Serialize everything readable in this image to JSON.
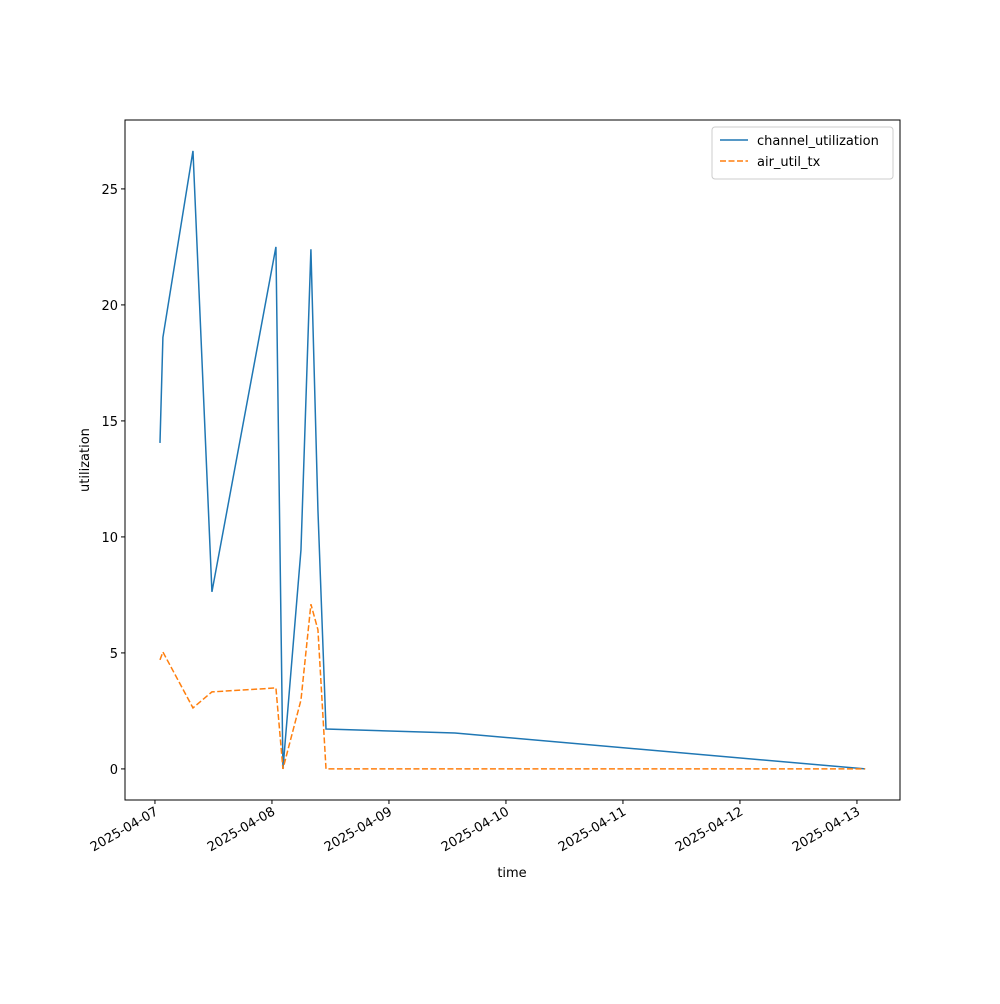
{
  "chart_data": {
    "type": "line",
    "xlabel": "time",
    "ylabel": "utilization",
    "x": [
      0.043,
      0.068,
      0.325,
      0.487,
      1.034,
      1.094,
      1.248,
      1.333,
      1.393,
      1.462,
      2.564,
      6.07
    ],
    "series": [
      {
        "name": "channel_utilization",
        "color": "#1f77b4",
        "dash": false,
        "values": [
          14.05,
          18.6,
          26.64,
          7.63,
          22.5,
          0,
          9.44,
          22.4,
          11.16,
          1.72,
          1.55,
          0
        ]
      },
      {
        "name": "air_util_tx",
        "color": "#ff7f0e",
        "dash": true,
        "values": [
          4.7,
          5.04,
          2.63,
          3.32,
          3.49,
          0,
          2.97,
          7.1,
          6.0,
          0,
          0,
          0
        ]
      }
    ],
    "xlim": [
      -0.256,
      6.368
    ],
    "xticks": [
      {
        "value": 0,
        "label": "2025-04-07"
      },
      {
        "value": 1,
        "label": "2025-04-08"
      },
      {
        "value": 2,
        "label": "2025-04-09"
      },
      {
        "value": 3,
        "label": "2025-04-10"
      },
      {
        "value": 4,
        "label": "2025-04-11"
      },
      {
        "value": 5,
        "label": "2025-04-12"
      },
      {
        "value": 6,
        "label": "2025-04-13"
      }
    ],
    "ylim": [
      -1.34,
      27.97
    ],
    "yticks": [
      0,
      5,
      10,
      15,
      20,
      25
    ],
    "legend": "upper right"
  }
}
